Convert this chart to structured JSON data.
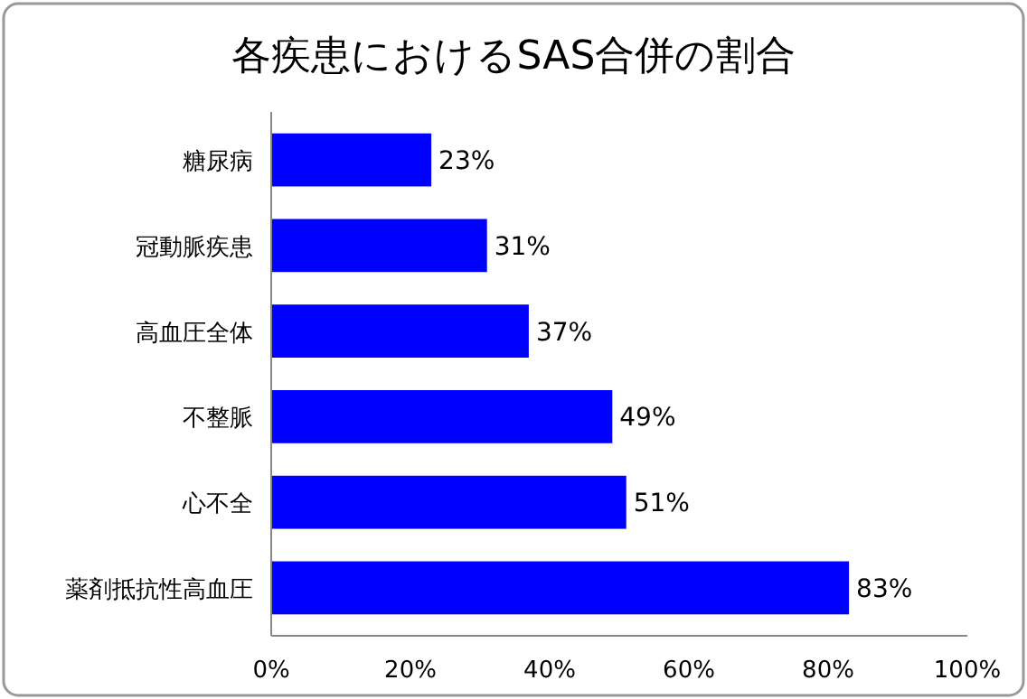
{
  "chart_data": {
    "type": "bar",
    "orientation": "horizontal",
    "title": "各疾患におけるSAS合併の割合",
    "categories": [
      "糖尿病",
      "冠動脈疾患",
      "高血圧全体",
      "不整脈",
      "心不全",
      "薬剤抵抗性高血圧"
    ],
    "values": [
      23,
      31,
      37,
      49,
      51,
      83
    ],
    "value_labels": [
      "23%",
      "31%",
      "37%",
      "49%",
      "51%",
      "83%"
    ],
    "color": "#0000ff",
    "xlim": [
      0,
      100
    ],
    "xticks": [
      {
        "value": 0,
        "label": "0%"
      },
      {
        "value": 20,
        "label": "20%"
      },
      {
        "value": 40,
        "label": "40%"
      },
      {
        "value": 60,
        "label": "60%"
      },
      {
        "value": 80,
        "label": "80%"
      },
      {
        "value": 100,
        "label": "100%"
      }
    ],
    "grid": false
  }
}
